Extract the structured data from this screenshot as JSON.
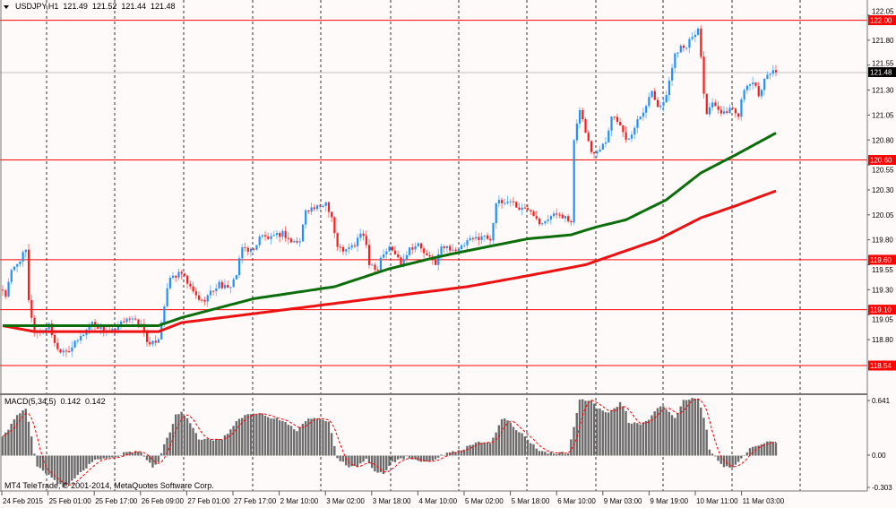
{
  "header": {
    "symbol": "USDJPY,H1",
    "open": "121.49",
    "high": "121.52",
    "low": "121.44",
    "close": "121.48",
    "menu_icon": "triangle-down-icon"
  },
  "copyright": "MT4 TeleTrade, © 2001-2014, MetaQuotes Software Corp.",
  "colors": {
    "background": "#fffafa",
    "bull": "#1e90ff",
    "bear": "#ff1a1a",
    "ma_fast": "#0b6e0b",
    "ma_slow": "#ee1111",
    "level_line": "#ff0000",
    "histogram": "#6b6b6b",
    "signal": "#ff0000"
  },
  "price_axis": {
    "ticks": [
      "122.05",
      "121.80",
      "121.55",
      "121.30",
      "121.05",
      "120.80",
      "120.55",
      "120.30",
      "120.05",
      "119.80",
      "119.55",
      "119.30",
      "119.05",
      "118.80"
    ],
    "current_price": "121.48",
    "levels": [
      "122.00",
      "120.60",
      "119.60",
      "119.10",
      "118.54"
    ]
  },
  "time_axis": [
    "24 Feb 2015",
    "25 Feb 01:00",
    "25 Feb 17:00",
    "26 Feb 09:00",
    "27 Feb 01:00",
    "27 Feb 17:00",
    "2 Mar 10:00",
    "3 Mar 02:00",
    "3 Mar 18:00",
    "4 Mar 10:00",
    "5 Mar 02:00",
    "5 Mar 18:00",
    "6 Mar 10:00",
    "9 Mar 03:00",
    "9 Mar 19:00",
    "10 Mar 11:00",
    "11 Mar 03:00"
  ],
  "chart_data": [
    {
      "type": "candlestick",
      "title": "USDJPY,H1",
      "bar_count": 269,
      "ylim": [
        118.54,
        122.05
      ],
      "close_path": [
        [
          0,
          119.3
        ],
        [
          1,
          119.24
        ],
        [
          3,
          119.48
        ],
        [
          8,
          119.69
        ],
        [
          9,
          119.18
        ],
        [
          11,
          118.88
        ],
        [
          13,
          118.88
        ],
        [
          16,
          118.94
        ],
        [
          19,
          118.7
        ],
        [
          23,
          118.7
        ],
        [
          26,
          118.79
        ],
        [
          31,
          118.97
        ],
        [
          34,
          118.91
        ],
        [
          39,
          118.88
        ],
        [
          43,
          119.03
        ],
        [
          48,
          118.94
        ],
        [
          51,
          118.73
        ],
        [
          54,
          118.82
        ],
        [
          56,
          119.15
        ],
        [
          58,
          119.42
        ],
        [
          62,
          119.46
        ],
        [
          66,
          119.27
        ],
        [
          69,
          119.18
        ],
        [
          75,
          119.36
        ],
        [
          78,
          119.3
        ],
        [
          81,
          119.45
        ],
        [
          83,
          119.72
        ],
        [
          87,
          119.69
        ],
        [
          89,
          119.84
        ],
        [
          93,
          119.81
        ],
        [
          97,
          119.87
        ],
        [
          100,
          119.78
        ],
        [
          103,
          119.78
        ],
        [
          105,
          120.11
        ],
        [
          110,
          120.12
        ],
        [
          112,
          120.18
        ],
        [
          114,
          120.03
        ],
        [
          115,
          119.87
        ],
        [
          116,
          119.72
        ],
        [
          119,
          119.69
        ],
        [
          122,
          119.75
        ],
        [
          124,
          119.87
        ],
        [
          126,
          119.75
        ],
        [
          127,
          119.57
        ],
        [
          130,
          119.51
        ],
        [
          131,
          119.63
        ],
        [
          134,
          119.72
        ],
        [
          136,
          119.66
        ],
        [
          138,
          119.57
        ],
        [
          141,
          119.72
        ],
        [
          144,
          119.75
        ],
        [
          147,
          119.63
        ],
        [
          150,
          119.57
        ],
        [
          152,
          119.72
        ],
        [
          155,
          119.72
        ],
        [
          158,
          119.69
        ],
        [
          161,
          119.78
        ],
        [
          166,
          119.84
        ],
        [
          169,
          119.81
        ],
        [
          171,
          120.17
        ],
        [
          174,
          120.17
        ],
        [
          176,
          120.2
        ],
        [
          179,
          120.11
        ],
        [
          183,
          120.11
        ],
        [
          186,
          119.98
        ],
        [
          189,
          120.02
        ],
        [
          193,
          120.07
        ],
        [
          197,
          119.96
        ],
        [
          198,
          120.77
        ],
        [
          200,
          121.12
        ],
        [
          202,
          120.88
        ],
        [
          204,
          120.68
        ],
        [
          206,
          120.7
        ],
        [
          209,
          120.79
        ],
        [
          211,
          121.04
        ],
        [
          213,
          121.01
        ],
        [
          215,
          120.86
        ],
        [
          217,
          120.79
        ],
        [
          220,
          121.01
        ],
        [
          223,
          121.15
        ],
        [
          225,
          121.3
        ],
        [
          227,
          121.15
        ],
        [
          229,
          121.15
        ],
        [
          231,
          121.39
        ],
        [
          233,
          121.66
        ],
        [
          235,
          121.75
        ],
        [
          237,
          121.75
        ],
        [
          239,
          121.82
        ],
        [
          241,
          121.91
        ],
        [
          242,
          121.64
        ],
        [
          243,
          121.28
        ],
        [
          244,
          121.06
        ],
        [
          246,
          121.15
        ],
        [
          248,
          121.1
        ],
        [
          249,
          121.04
        ],
        [
          252,
          121.12
        ],
        [
          255,
          121.06
        ],
        [
          256,
          121.22
        ],
        [
          258,
          121.33
        ],
        [
          260,
          121.39
        ],
        [
          262,
          121.24
        ],
        [
          264,
          121.42
        ],
        [
          266,
          121.48
        ],
        [
          268,
          121.48
        ]
      ],
      "ma_fast": [
        [
          0,
          118.94
        ],
        [
          54,
          118.94
        ],
        [
          62,
          119.02
        ],
        [
          87,
          119.21
        ],
        [
          115,
          119.33
        ],
        [
          134,
          119.51
        ],
        [
          151,
          119.63
        ],
        [
          161,
          119.69
        ],
        [
          182,
          119.81
        ],
        [
          197,
          119.85
        ],
        [
          206,
          119.93
        ],
        [
          216,
          120.0
        ],
        [
          230,
          120.2
        ],
        [
          242,
          120.47
        ],
        [
          254,
          120.65
        ],
        [
          268,
          120.87
        ]
      ],
      "ma_slow": [
        [
          0,
          118.94
        ],
        [
          11,
          118.88
        ],
        [
          54,
          118.88
        ],
        [
          62,
          118.97
        ],
        [
          87,
          119.06
        ],
        [
          161,
          119.33
        ],
        [
          182,
          119.44
        ],
        [
          202,
          119.55
        ],
        [
          227,
          119.8
        ],
        [
          242,
          120.02
        ],
        [
          254,
          120.14
        ],
        [
          268,
          120.29
        ]
      ]
    },
    {
      "type": "bar",
      "title": "MACD(5,34,5)",
      "main_value": "0.142",
      "signal_value": "0.142",
      "ylim": [
        -0.303,
        0.641
      ],
      "tick_labels": [
        "0.641",
        "0.00",
        "-0.303"
      ],
      "signal_period": 5,
      "histogram_path": [
        [
          0,
          0.2
        ],
        [
          1,
          0.25
        ],
        [
          4,
          0.41
        ],
        [
          8,
          0.54
        ],
        [
          10,
          0.21
        ],
        [
          11,
          0.03
        ],
        [
          12,
          -0.12
        ],
        [
          15,
          -0.2
        ],
        [
          18,
          -0.29
        ],
        [
          21,
          -0.35
        ],
        [
          23,
          -0.32
        ],
        [
          26,
          -0.22
        ],
        [
          31,
          -0.07
        ],
        [
          36,
          -0.02
        ],
        [
          40,
          -0.02
        ],
        [
          42,
          0.03
        ],
        [
          47,
          0.05
        ],
        [
          50,
          -0.04
        ],
        [
          52,
          -0.12
        ],
        [
          54,
          -0.07
        ],
        [
          56,
          0.13
        ],
        [
          58,
          0.26
        ],
        [
          60,
          0.46
        ],
        [
          62,
          0.5
        ],
        [
          65,
          0.38
        ],
        [
          68,
          0.18
        ],
        [
          76,
          0.18
        ],
        [
          81,
          0.38
        ],
        [
          84,
          0.45
        ],
        [
          89,
          0.48
        ],
        [
          93,
          0.43
        ],
        [
          98,
          0.38
        ],
        [
          102,
          0.28
        ],
        [
          106,
          0.43
        ],
        [
          110,
          0.43
        ],
        [
          113,
          0.38
        ],
        [
          115,
          0.11
        ],
        [
          116,
          -0.02
        ],
        [
          120,
          -0.14
        ],
        [
          123,
          -0.12
        ],
        [
          126,
          -0.04
        ],
        [
          129,
          -0.17
        ],
        [
          132,
          -0.2
        ],
        [
          135,
          -0.07
        ],
        [
          140,
          -0.02
        ],
        [
          147,
          -0.07
        ],
        [
          151,
          -0.02
        ],
        [
          154,
          0.03
        ],
        [
          160,
          0.08
        ],
        [
          165,
          0.16
        ],
        [
          169,
          0.13
        ],
        [
          171,
          0.26
        ],
        [
          173,
          0.4
        ],
        [
          174,
          0.43
        ],
        [
          177,
          0.33
        ],
        [
          182,
          0.18
        ],
        [
          185,
          0.08
        ],
        [
          189,
          0.03
        ],
        [
          196,
          0.03
        ],
        [
          198,
          0.32
        ],
        [
          200,
          0.64
        ],
        [
          204,
          0.61
        ],
        [
          206,
          0.54
        ],
        [
          209,
          0.48
        ],
        [
          213,
          0.54
        ],
        [
          214,
          0.61
        ],
        [
          216,
          0.5
        ],
        [
          217,
          0.36
        ],
        [
          221,
          0.36
        ],
        [
          224,
          0.4
        ],
        [
          225,
          0.46
        ],
        [
          228,
          0.57
        ],
        [
          233,
          0.43
        ],
        [
          235,
          0.55
        ],
        [
          236,
          0.64
        ],
        [
          241,
          0.64
        ],
        [
          242,
          0.53
        ],
        [
          244,
          0.3
        ],
        [
          245,
          0.06
        ],
        [
          247,
          -0.02
        ],
        [
          250,
          -0.12
        ],
        [
          253,
          -0.14
        ],
        [
          256,
          -0.02
        ],
        [
          259,
          0.08
        ],
        [
          262,
          0.1
        ],
        [
          265,
          0.15
        ],
        [
          268,
          0.142
        ]
      ]
    }
  ]
}
